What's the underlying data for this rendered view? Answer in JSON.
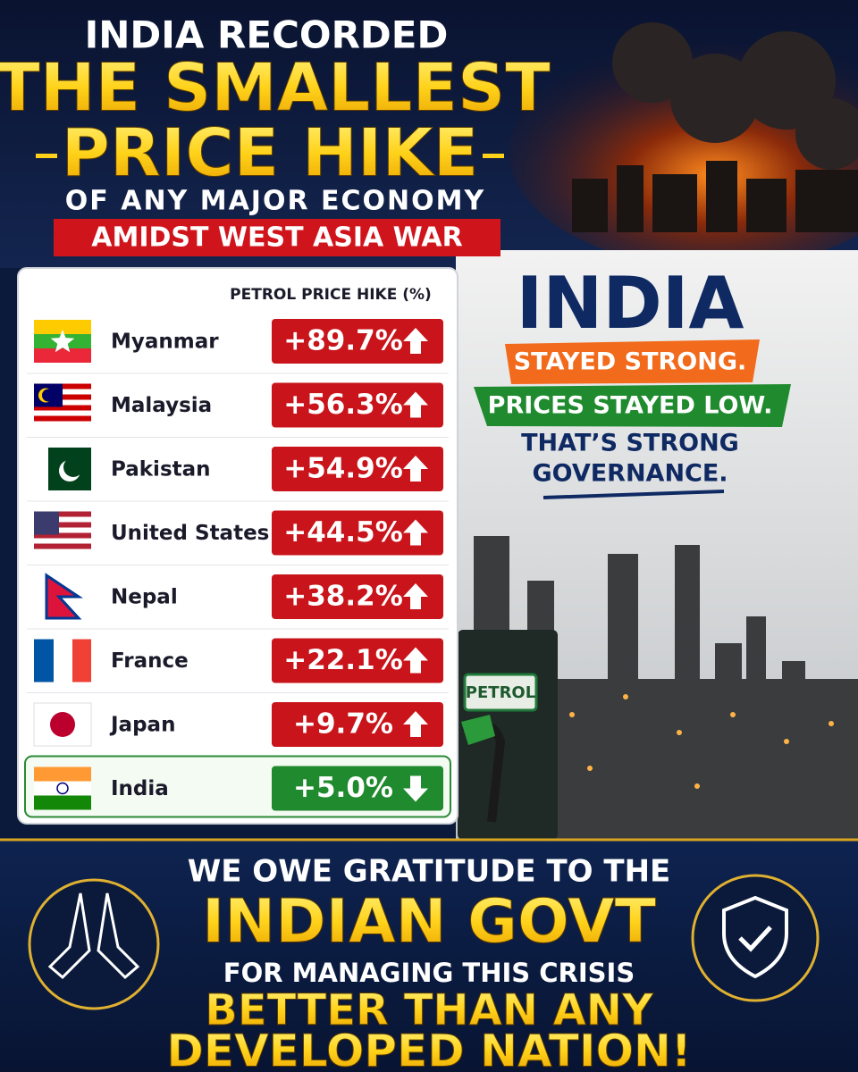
{
  "header": {
    "line1": "INDIA RECORDED",
    "line2": "THE SMALLEST",
    "line3": "PRICE HIKE",
    "line4": "OF ANY MAJOR ECONOMY",
    "banner": "AMIDST WEST ASIA WAR"
  },
  "table": {
    "title": "PETROL PRICE HIKE (%)",
    "rows": [
      [
        "Myanmar",
        "+89.7%"
      ],
      [
        "Malaysia",
        "+56.3%"
      ],
      [
        "Pakistan",
        "+54.9%"
      ],
      [
        "United States",
        "+44.5%"
      ],
      [
        "Nepal",
        "+38.2%"
      ],
      [
        "France",
        "+22.1%"
      ],
      [
        "Japan",
        "+9.7%"
      ],
      [
        "India",
        "+5.0%"
      ]
    ]
  },
  "message": {
    "title": "INDIA",
    "line1": "STAYED STRONG.",
    "line2": "PRICES STAYED LOW.",
    "line3": "THAT’S STRONG",
    "line4": "GOVERNANCE."
  },
  "pump_label": "PETROL",
  "footer": {
    "line1": "WE OWE GRATITUDE TO THE",
    "line2": "INDIAN GOVT",
    "line3": "FOR MANAGING THIS CRISIS",
    "line4": "BETTER THAN ANY",
    "line5": "DEVELOPED NATION!"
  }
}
